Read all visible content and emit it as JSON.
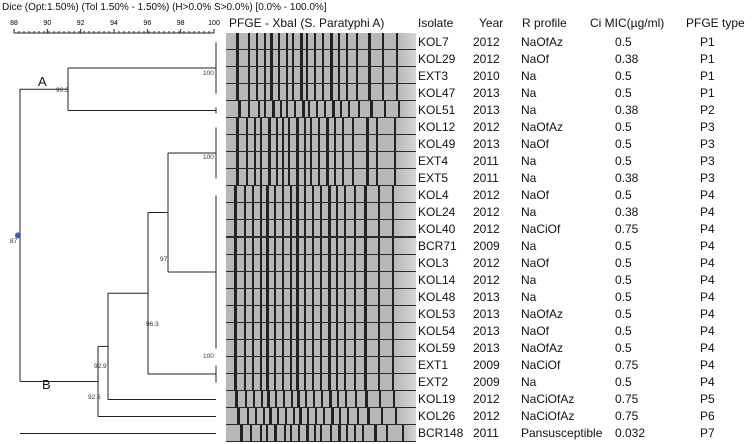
{
  "header": {
    "similarity": "Dice (Opt:1.50%) (Tol 1.50% - 1.50%) (H>0.0% S>0.0%) [0.0% - 100.0%]"
  },
  "scale": {
    "ticks": [
      "88",
      "90",
      "92",
      "94",
      "96",
      "98",
      "100"
    ]
  },
  "gel_title": "PFGE - XbaI (S. Paratyphi A)",
  "columns": {
    "isolate": "Isolate",
    "year": "Year",
    "r_profile": "R profile",
    "mic": "Ci MIC(µg/ml)",
    "pfge": "PFGE type"
  },
  "clusters": {
    "a": "A",
    "b": "B"
  },
  "node_labels": {
    "n100a": "100",
    "n903": "90.3",
    "n87": "87",
    "n100b": "100",
    "n97": "97",
    "n963": "96.3",
    "n100c": "100",
    "n929": "92.9",
    "n926": "92.6"
  },
  "isolates": [
    {
      "isolate": "KOL7",
      "year": "2012",
      "r": "NaOfAz",
      "mic": "0.5",
      "pfge": "P1"
    },
    {
      "isolate": "KOL29",
      "year": "2012",
      "r": "NaOf",
      "mic": "0.38",
      "pfge": "P1"
    },
    {
      "isolate": "EXT3",
      "year": "2010",
      "r": "Na",
      "mic": "0.5",
      "pfge": "P1"
    },
    {
      "isolate": "KOL47",
      "year": "2013",
      "r": "Na",
      "mic": "0.5",
      "pfge": "P1"
    },
    {
      "isolate": "KOL51",
      "year": "2013",
      "r": "Na",
      "mic": "0.38",
      "pfge": "P2"
    },
    {
      "isolate": "KOL12",
      "year": "2012",
      "r": "NaOfAz",
      "mic": "0.5",
      "pfge": "P3"
    },
    {
      "isolate": "KOL49",
      "year": "2013",
      "r": "NaOf",
      "mic": "0.5",
      "pfge": "P3"
    },
    {
      "isolate": "EXT4",
      "year": "2011",
      "r": "Na",
      "mic": "0.5",
      "pfge": "P3"
    },
    {
      "isolate": "EXT5",
      "year": "2011",
      "r": "Na",
      "mic": "0.38",
      "pfge": "P3"
    },
    {
      "isolate": "KOL4",
      "year": "2012",
      "r": "NaOf",
      "mic": "0.5",
      "pfge": "P4"
    },
    {
      "isolate": "KOL24",
      "year": "2012",
      "r": "Na",
      "mic": "0.38",
      "pfge": "P4"
    },
    {
      "isolate": "KOL40",
      "year": "2012",
      "r": "NaCiOf",
      "mic": "0.75",
      "pfge": "P4"
    },
    {
      "isolate": "BCR71",
      "year": "2009",
      "r": "Na",
      "mic": "0.5",
      "pfge": "P4"
    },
    {
      "isolate": "KOL3",
      "year": "2012",
      "r": "NaOf",
      "mic": "0.5",
      "pfge": "P4"
    },
    {
      "isolate": "KOL14",
      "year": "2012",
      "r": "Na",
      "mic": "0.5",
      "pfge": "P4"
    },
    {
      "isolate": "KOL48",
      "year": "2013",
      "r": "Na",
      "mic": "0.5",
      "pfge": "P4"
    },
    {
      "isolate": "KOL53",
      "year": "2013",
      "r": "NaOfAz",
      "mic": "0.5",
      "pfge": "P4"
    },
    {
      "isolate": "KOL54",
      "year": "2013",
      "r": "NaOf",
      "mic": "0.5",
      "pfge": "P4"
    },
    {
      "isolate": "KOL59",
      "year": "2013",
      "r": "NaOfAz",
      "mic": "0.5",
      "pfge": "P4"
    },
    {
      "isolate": "EXT1",
      "year": "2009",
      "r": "NaCiOf",
      "mic": "0.75",
      "pfge": "P4"
    },
    {
      "isolate": "EXT2",
      "year": "2009",
      "r": "Na",
      "mic": "0.5",
      "pfge": "P4"
    },
    {
      "isolate": "KOL19",
      "year": "2012",
      "r": "NaCiOfAz",
      "mic": "0.75",
      "pfge": "P5"
    },
    {
      "isolate": "KOL26",
      "year": "2012",
      "r": "NaCiOfAz",
      "mic": "0.75",
      "pfge": "P6"
    },
    {
      "isolate": "BCR148",
      "year": "2011",
      "r": "Pansusceptible",
      "mic": "0.032",
      "pfge": "P7"
    }
  ]
}
